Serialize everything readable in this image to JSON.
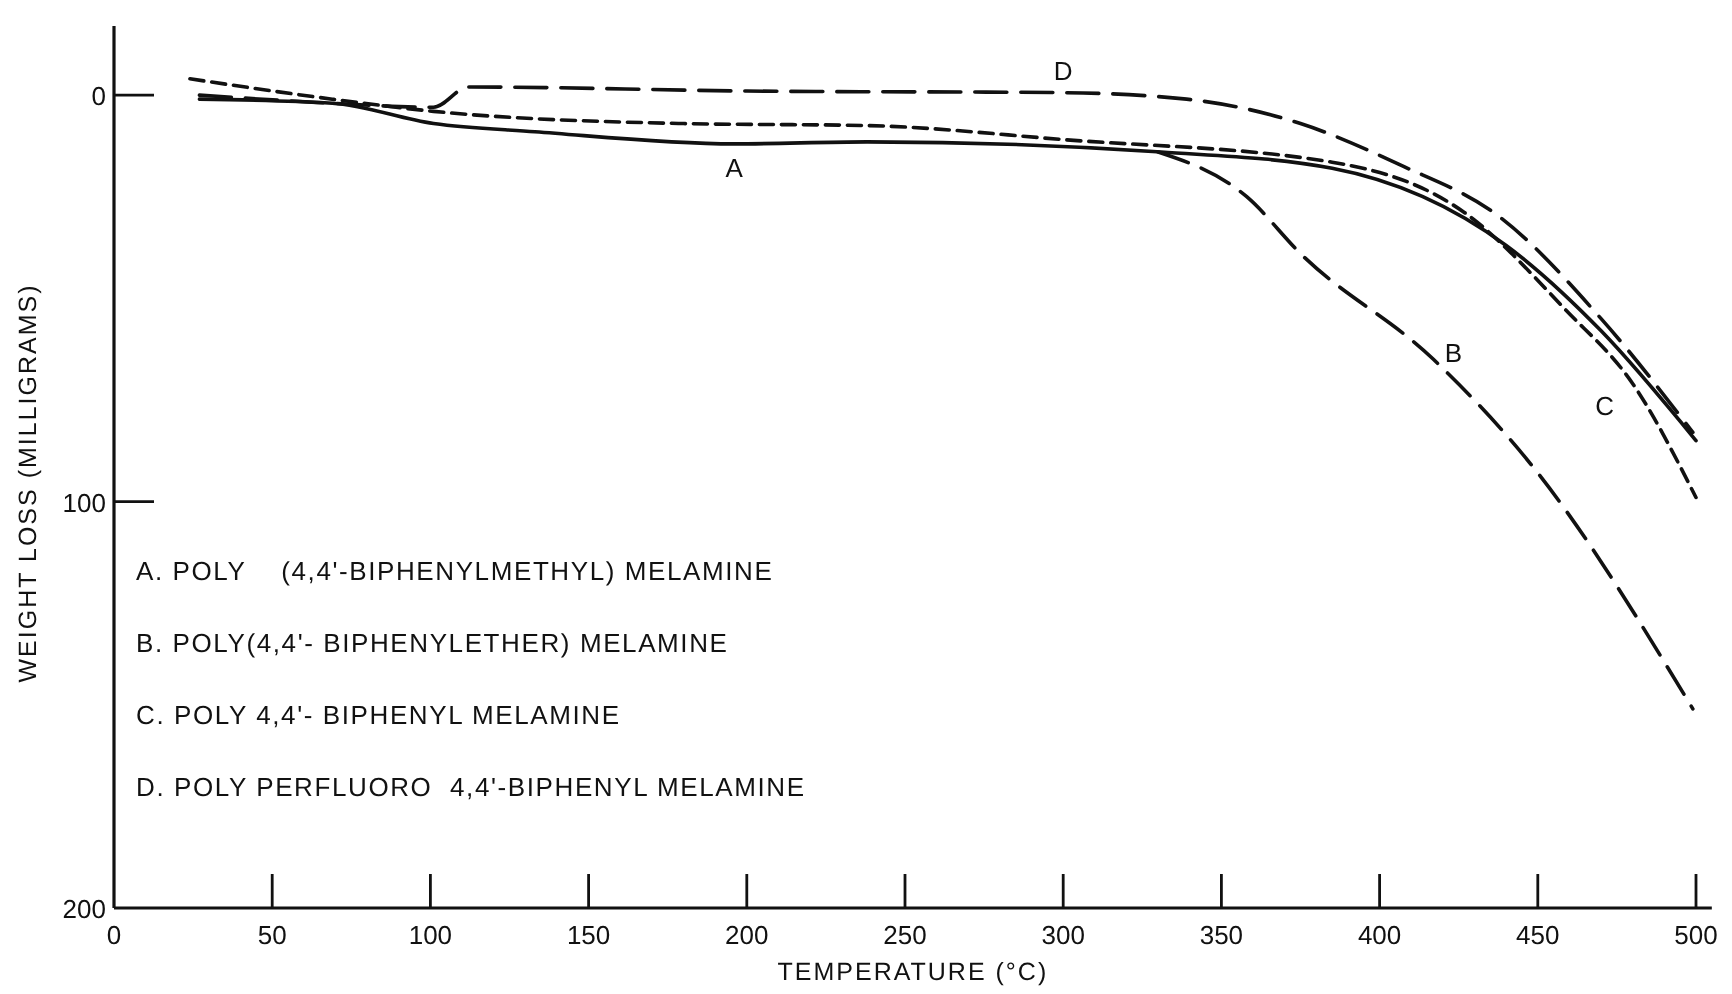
{
  "chart_data": {
    "type": "line",
    "xlabel": "TEMPERATURE (°C)",
    "ylabel": "WEIGHT LOSS (MILLIGRAMS)",
    "xlim": [
      0,
      505
    ],
    "ylim": [
      200,
      -17
    ],
    "xticks": [
      0,
      50,
      100,
      150,
      200,
      250,
      300,
      350,
      400,
      450,
      500
    ],
    "yticks": [
      0,
      100,
      200
    ],
    "grid": false,
    "series": [
      {
        "color": "#111111",
        "line_style": "solid",
        "x": [
          27,
          69,
          101,
          133,
          196,
          238,
          331,
          385,
          440,
          470,
          500
        ],
        "values": [
          1,
          2,
          7,
          9,
          12,
          11.5,
          14,
          18,
          37,
          58,
          85
        ]
      },
      {
        "color": "#111111",
        "line_style": "longdash",
        "x": [
          330,
          358,
          375,
          417,
          448,
          499
        ],
        "values": [
          14,
          25,
          39,
          65,
          91,
          151
        ]
      },
      {
        "color": "#111111",
        "line_style": "dashed",
        "x": [
          24,
          69,
          101,
          180,
          238,
          301,
          385,
          427,
          459,
          480,
          500
        ],
        "values": [
          -4,
          1,
          4,
          7,
          7.5,
          11,
          16.5,
          29,
          53,
          71,
          99
        ]
      },
      {
        "color": "#111111",
        "line_style": "longdash",
        "x": [
          27,
          69,
          101,
          112,
          200,
          300,
          339,
          375,
          406,
          438,
          470,
          499
        ],
        "values": [
          0,
          2,
          3,
          -2,
          -1,
          -0.6,
          1,
          7,
          17,
          30,
          55,
          83
        ]
      }
    ],
    "annotations": [
      {
        "text": "A",
        "x": 196,
        "y": 12
      },
      {
        "text": "B",
        "x": 417,
        "y": 65
      },
      {
        "text": "C",
        "x": 480,
        "y": 71
      },
      {
        "text": "D",
        "x": 300,
        "y": -0.6
      },
      "A. POLY    (4,4'-BIPHENYLMETHYL) MELAMINE",
      "B. POLY(4,4'- BIPHENYLETHER) MELAMINE",
      "C. POLY 4,4'- BIPHENYL MELAMINE",
      "D. POLY PERFLUORO  4,4'-BIPHENYL MELAMINE"
    ]
  }
}
